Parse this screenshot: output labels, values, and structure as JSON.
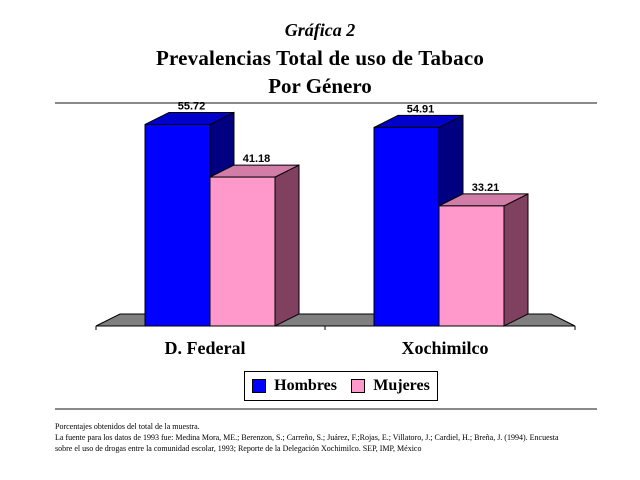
{
  "header": {
    "kicker": "Gráfica 2",
    "title_line1": "Prevalencias Total de uso de Tabaco",
    "title_line2": "Por Género"
  },
  "chart_data": {
    "type": "bar",
    "categories": [
      "D. Federal",
      "Xochimilco"
    ],
    "series": [
      {
        "name": "Hombres",
        "values": [
          55.72,
          54.91
        ],
        "color": "#0000ff"
      },
      {
        "name": "Mujeres",
        "values": [
          41.18,
          33.21
        ],
        "color": "#ff99cc"
      }
    ],
    "ylim": [
      0,
      60
    ],
    "grid": false,
    "legend": "bottom-center",
    "title": "",
    "xlabel": "",
    "ylabel": ""
  },
  "legend": {
    "items": [
      {
        "label": "Hombres",
        "color": "#0000ff"
      },
      {
        "label": "Mujeres",
        "color": "#ff99cc"
      }
    ]
  },
  "notes": {
    "line1": "Porcentajes obtenidos del total de la muestra.",
    "line2": "La fuente para los datos de 1993 fue: Medina Mora, ME.; Berenzon, S.; Carreño, S.; Juárez, F.;Rojas, E.; Villatoro, J.; Cardiel, H.; Breña, J. (1994). Encuesta",
    "line3": "sobre el uso de drogas entre la comunidad escolar, 1993; Reporte de la Delegación Xochimilco. SEP, IMP, México"
  }
}
